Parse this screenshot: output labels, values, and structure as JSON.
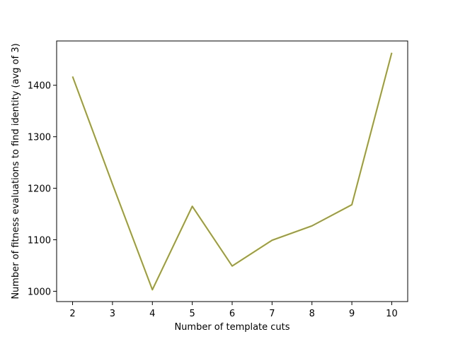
{
  "chart_data": {
    "type": "line",
    "title": "",
    "xlabel": "Number of template cuts",
    "ylabel": "Number of fitness evaluations to find identity (avg of 3)",
    "x": [
      2,
      3,
      4,
      5,
      6,
      7,
      8,
      9,
      10
    ],
    "series": [
      {
        "values": [
          1417,
          1208,
          1003,
          1165,
          1049,
          1099,
          1127,
          1168,
          1463
        ],
        "color": "#bcbd22"
      },
      {
        "values": [
          1417,
          1208,
          1003,
          1165,
          1049,
          1099,
          1127,
          1168,
          1463
        ],
        "color": "#7f7f7f"
      }
    ],
    "xlim": [
      1.6,
      10.4
    ],
    "ylim": [
      980,
      1486
    ],
    "xticks": [
      2,
      3,
      4,
      5,
      6,
      7,
      8,
      9,
      10
    ],
    "yticks": [
      1000,
      1100,
      1200,
      1300,
      1400
    ],
    "grid": false,
    "legend": "none"
  }
}
